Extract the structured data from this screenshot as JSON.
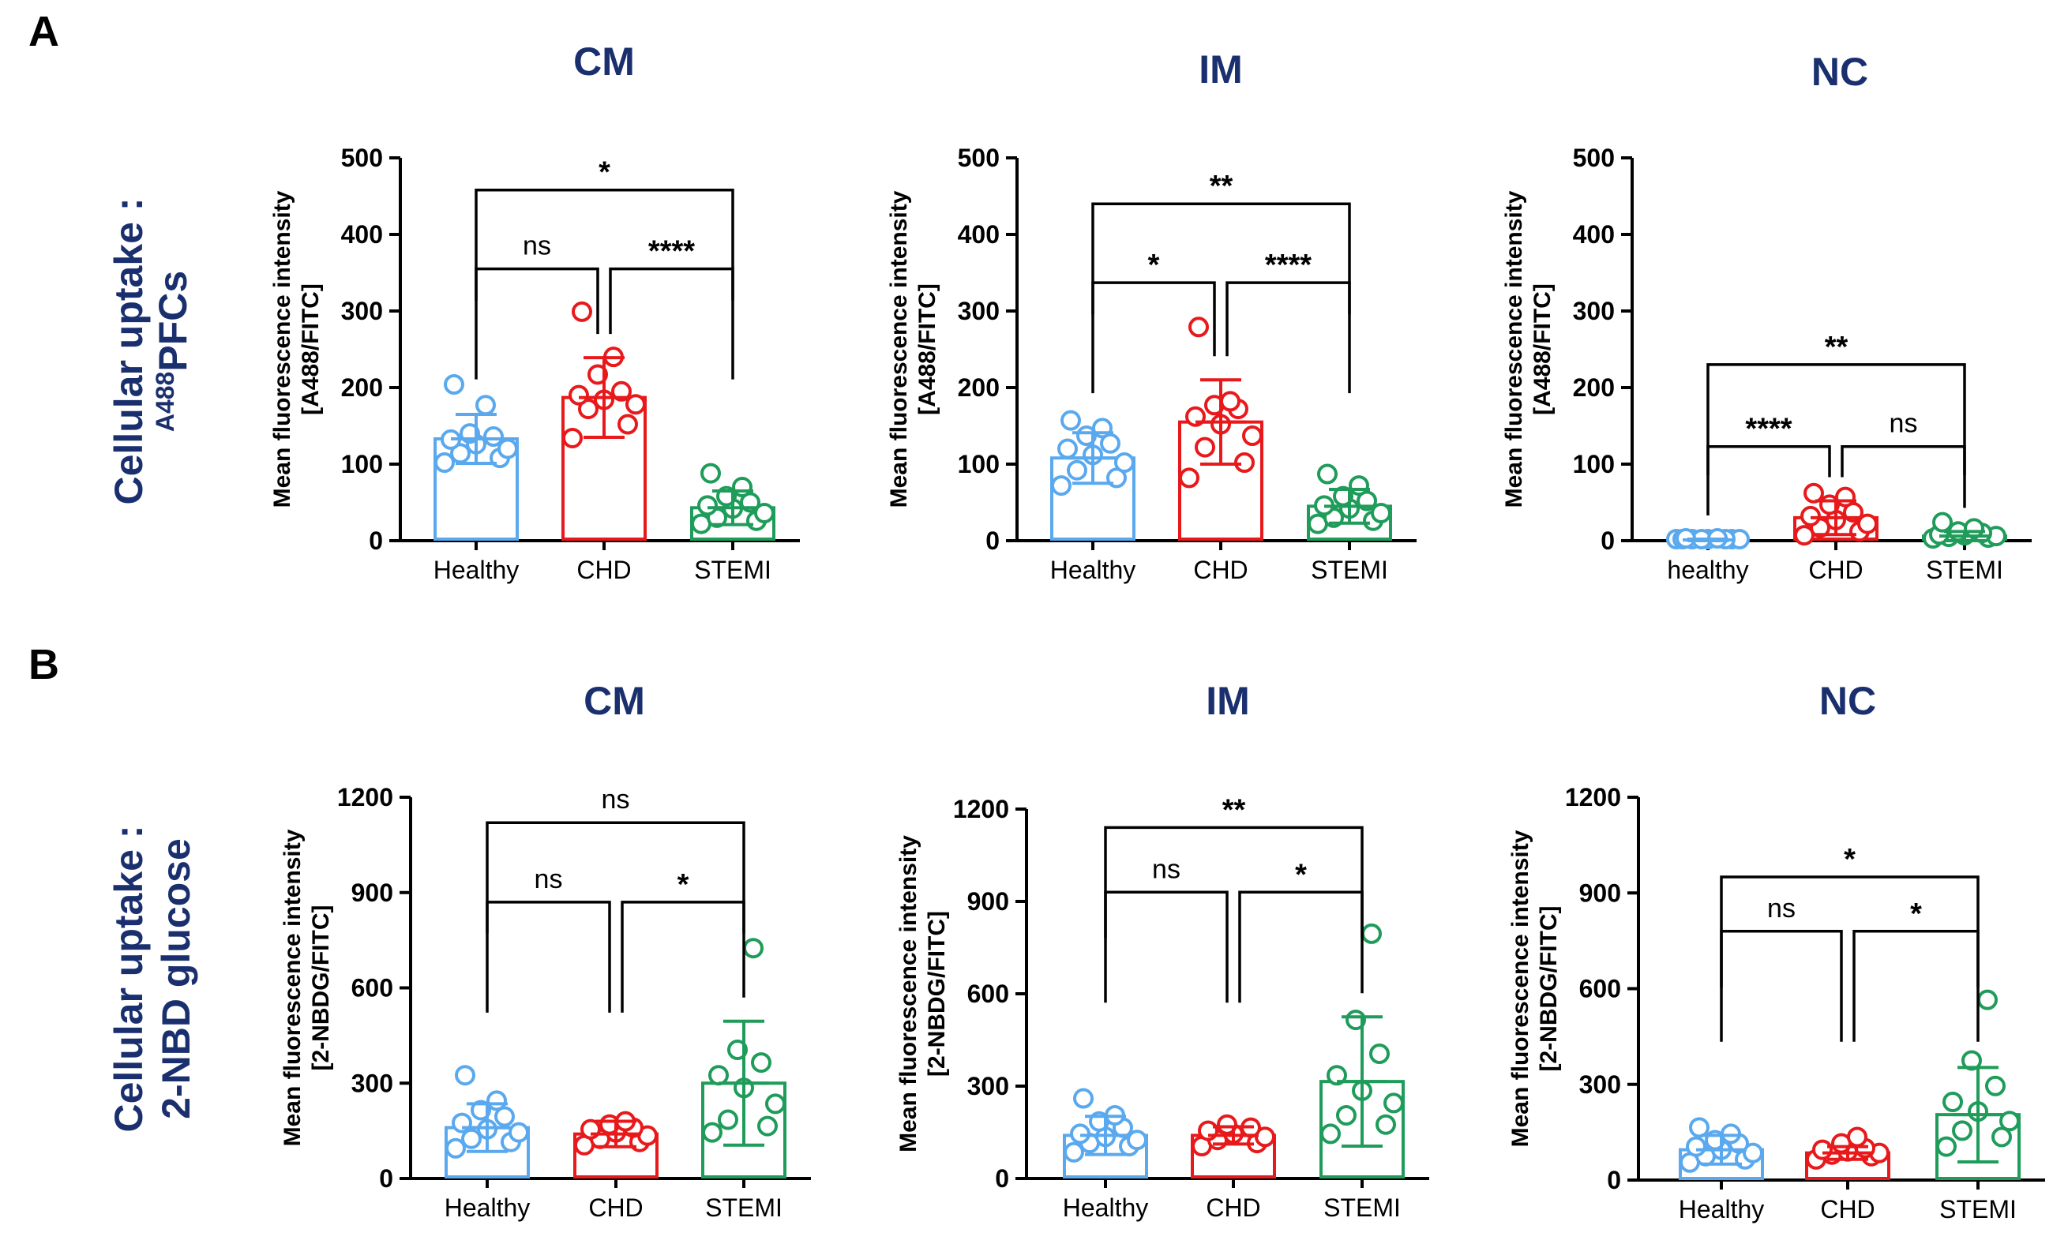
{
  "panels": {
    "a": "A",
    "b": "B"
  },
  "row_labels": {
    "a": {
      "line1": "Cellular uptake :",
      "sup": "A488",
      "line2": "PFCs"
    },
    "b": {
      "line1": "Cellular uptake :",
      "line2": "2-NBD glucose"
    }
  },
  "colors": {
    "healthy": "#5aa9ef",
    "chd": "#e8191b",
    "stemi": "#1f9c5a",
    "title": "#1a2f6e"
  },
  "chart_data": [
    {
      "type": "bar",
      "title": "CM",
      "ylabel": [
        "Mean fluorescence intensity",
        "[A488/FITC]"
      ],
      "categories": [
        "Healthy",
        "CHD",
        "STEMI"
      ],
      "ylim": [
        0,
        500
      ],
      "yticks": [
        0,
        100,
        200,
        300,
        400,
        500
      ],
      "means": [
        133,
        187,
        43
      ],
      "sd": [
        32,
        52,
        22
      ],
      "points": [
        [
          100,
          106,
          112,
          118,
          124,
          130,
          134,
          138,
          175,
          202
        ],
        [
          132,
          150,
          170,
          176,
          182,
          188,
          193,
          215,
          238,
          297
        ],
        [
          20,
          24,
          28,
          34,
          40,
          44,
          48,
          56,
          68,
          86
        ]
      ],
      "comparisons": [
        {
          "from": 0,
          "to": 1,
          "label": "ns",
          "y": 355
        },
        {
          "from": 1,
          "to": 2,
          "label": "****",
          "y": 355
        },
        {
          "from": 0,
          "to": 2,
          "label": "*",
          "y": 458
        }
      ]
    },
    {
      "type": "bar",
      "title": "IM",
      "ylabel": [
        "Mean fluorescence intensity",
        "[A488/FITC]"
      ],
      "categories": [
        "Healthy",
        "CHD",
        "STEMI"
      ],
      "ylim": [
        0,
        500
      ],
      "yticks": [
        0,
        100,
        200,
        300,
        400,
        500
      ],
      "means": [
        108,
        155,
        45
      ],
      "sd": [
        33,
        55,
        22
      ],
      "points": [
        [
          70,
          80,
          90,
          100,
          110,
          118,
          125,
          135,
          145,
          155
        ],
        [
          80,
          100,
          120,
          135,
          150,
          160,
          170,
          175,
          180,
          277
        ],
        [
          20,
          24,
          28,
          34,
          40,
          44,
          50,
          56,
          70,
          85
        ]
      ],
      "comparisons": [
        {
          "from": 0,
          "to": 1,
          "label": "*",
          "y": 337
        },
        {
          "from": 1,
          "to": 2,
          "label": "****",
          "y": 337
        },
        {
          "from": 0,
          "to": 2,
          "label": "**",
          "y": 440
        }
      ]
    },
    {
      "type": "bar",
      "title": "NC",
      "ylabel": [
        "Mean fluorescence intensity",
        "[A488/FITC]"
      ],
      "categories": [
        "healthy",
        "CHD",
        "STEMI"
      ],
      "ylim": [
        0,
        500
      ],
      "yticks": [
        0,
        100,
        200,
        300,
        400,
        500
      ],
      "means": [
        1,
        30,
        6
      ],
      "sd": [
        1,
        22,
        6
      ],
      "points": [
        [
          0,
          0,
          0,
          0,
          0,
          0,
          0,
          0,
          1,
          1
        ],
        [
          5,
          10,
          15,
          20,
          25,
          30,
          35,
          45,
          55,
          60
        ],
        [
          1,
          2,
          3,
          4,
          5,
          6,
          8,
          10,
          14,
          22
        ]
      ],
      "comparisons": [
        {
          "from": 0,
          "to": 1,
          "label": "****",
          "y": 123
        },
        {
          "from": 1,
          "to": 2,
          "label": "ns",
          "y": 123
        },
        {
          "from": 0,
          "to": 2,
          "label": "**",
          "y": 230
        }
      ]
    },
    {
      "type": "bar",
      "title": "CM",
      "ylabel": [
        "Mean fluorescence intensity",
        "[2-NBDG/FITC]"
      ],
      "categories": [
        "Healthy",
        "CHD",
        "STEMI"
      ],
      "ylim": [
        0,
        1200
      ],
      "yticks": [
        0,
        300,
        600,
        900,
        1200
      ],
      "means": [
        160,
        140,
        300
      ],
      "sd": [
        75,
        40,
        195
      ],
      "points": [
        [
          90,
          110,
          120,
          140,
          150,
          170,
          190,
          210,
          240,
          320
        ],
        [
          100,
          110,
          120,
          130,
          140,
          150,
          155,
          165,
          175
        ],
        [
          140,
          160,
          180,
          230,
          280,
          320,
          360,
          400,
          720
        ]
      ],
      "comparisons": [
        {
          "from": 0,
          "to": 1,
          "label": "ns",
          "y": 870
        },
        {
          "from": 1,
          "to": 2,
          "label": "*",
          "y": 870
        },
        {
          "from": 0,
          "to": 2,
          "label": "ns",
          "y": 1120
        }
      ]
    },
    {
      "type": "bar",
      "title": "IM",
      "ylabel": [
        "Mean fluorescence intensity",
        "[2-NBDG/FITC]"
      ],
      "categories": [
        "Healthy",
        "CHD",
        "STEMI"
      ],
      "ylim": [
        0,
        1200
      ],
      "yticks": [
        0,
        300,
        600,
        900,
        1200
      ],
      "means": [
        140,
        140,
        315
      ],
      "sd": [
        62,
        28,
        210
      ],
      "points": [
        [
          80,
          100,
          110,
          120,
          130,
          140,
          160,
          180,
          200,
          255
        ],
        [
          100,
          110,
          120,
          130,
          140,
          150,
          160,
          170
        ],
        [
          140,
          170,
          200,
          240,
          280,
          330,
          400,
          510,
          790
        ]
      ],
      "comparisons": [
        {
          "from": 0,
          "to": 1,
          "label": "ns",
          "y": 930
        },
        {
          "from": 1,
          "to": 2,
          "label": "*",
          "y": 930
        },
        {
          "from": 0,
          "to": 2,
          "label": "**",
          "y": 1140
        }
      ]
    },
    {
      "type": "bar",
      "title": "NC",
      "ylabel": [
        "Mean fluorescence intensity",
        "[2-NBDG/FITC]"
      ],
      "categories": [
        "Healthy",
        "CHD",
        "STEMI"
      ],
      "ylim": [
        0,
        1200
      ],
      "yticks": [
        0,
        300,
        600,
        900,
        1200
      ],
      "means": [
        95,
        85,
        205
      ],
      "sd": [
        45,
        20,
        148
      ],
      "points": [
        [
          50,
          60,
          70,
          80,
          90,
          100,
          110,
          120,
          140,
          160
        ],
        [
          60,
          70,
          75,
          80,
          85,
          90,
          95,
          110,
          130
        ],
        [
          100,
          130,
          150,
          180,
          210,
          240,
          290,
          370,
          560
        ]
      ],
      "comparisons": [
        {
          "from": 0,
          "to": 1,
          "label": "ns",
          "y": 780
        },
        {
          "from": 1,
          "to": 2,
          "label": "*",
          "y": 780
        },
        {
          "from": 0,
          "to": 2,
          "label": "*",
          "y": 950
        }
      ]
    }
  ]
}
